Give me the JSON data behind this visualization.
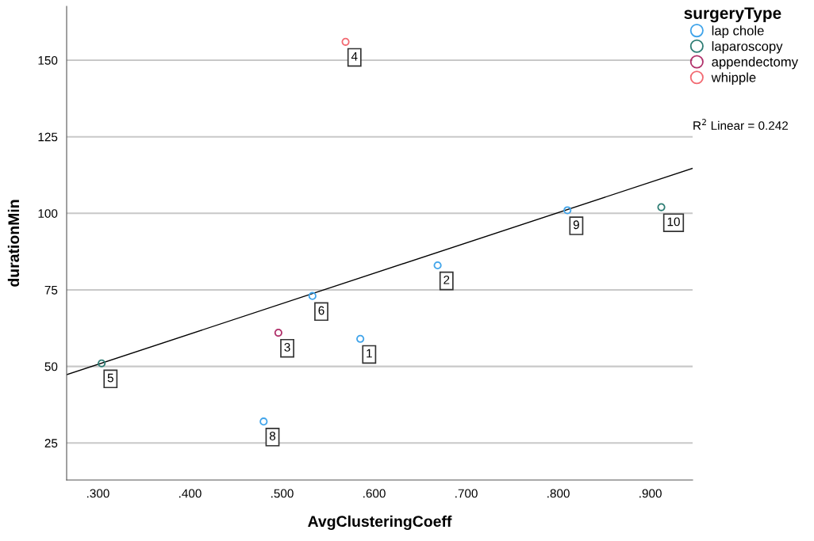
{
  "chart_data": {
    "type": "scatter",
    "xlabel": "AvgClusteringCoeff",
    "ylabel": "durationMin",
    "legend_title": "surgeryType",
    "xlim": [
      0.266,
      0.946
    ],
    "ylim": [
      12.9,
      167.6
    ],
    "xticks": [
      {
        "value": 0.3,
        "label": ".300"
      },
      {
        "value": 0.4,
        "label": ".400"
      },
      {
        "value": 0.5,
        "label": ".500"
      },
      {
        "value": 0.6,
        "label": ".600"
      },
      {
        "value": 0.7,
        "label": ".700"
      },
      {
        "value": 0.8,
        "label": ".800"
      },
      {
        "value": 0.9,
        "label": ".900"
      }
    ],
    "yticks": [
      25,
      50,
      75,
      100,
      125,
      150
    ],
    "grid": "y",
    "legend": "top right",
    "marker": "circle",
    "series": [
      {
        "name": "lap chole",
        "color": "#40a4ea",
        "x": [
          0.585,
          0.669,
          0.533,
          0.48,
          0.81
        ],
        "values": [
          59,
          83,
          73,
          32,
          101
        ]
      },
      {
        "name": "laparoscopy",
        "color": "#2e7d74",
        "x": [
          0.304,
          0.912
        ],
        "values": [
          51,
          102
        ]
      },
      {
        "name": "appendectomy",
        "color": "#b0306a",
        "x": [
          0.496
        ],
        "values": [
          61
        ]
      },
      {
        "name": "whipple",
        "color": "#f26a72",
        "x": [
          0.569
        ],
        "values": [
          156
        ]
      },
      {
        "type": "line",
        "marker": "none",
        "color": "#000000",
        "x": [
          0.266,
          0.946
        ],
        "values": [
          47.3,
          114.7
        ]
      }
    ],
    "annotations": [
      {
        "text": "1",
        "x": 0.585,
        "y": 59
      },
      {
        "text": "2",
        "x": 0.669,
        "y": 83
      },
      {
        "text": "3",
        "x": 0.496,
        "y": 61
      },
      {
        "text": "4",
        "x": 0.569,
        "y": 156
      },
      {
        "text": "5",
        "x": 0.304,
        "y": 51
      },
      {
        "text": "6",
        "x": 0.533,
        "y": 73
      },
      {
        "text": "8",
        "x": 0.48,
        "y": 32
      },
      {
        "text": "9",
        "x": 0.81,
        "y": 101
      },
      {
        "text": "10",
        "x": 0.912,
        "y": 102
      },
      "R$^{2}$ Linear = 0.242"
    ]
  }
}
